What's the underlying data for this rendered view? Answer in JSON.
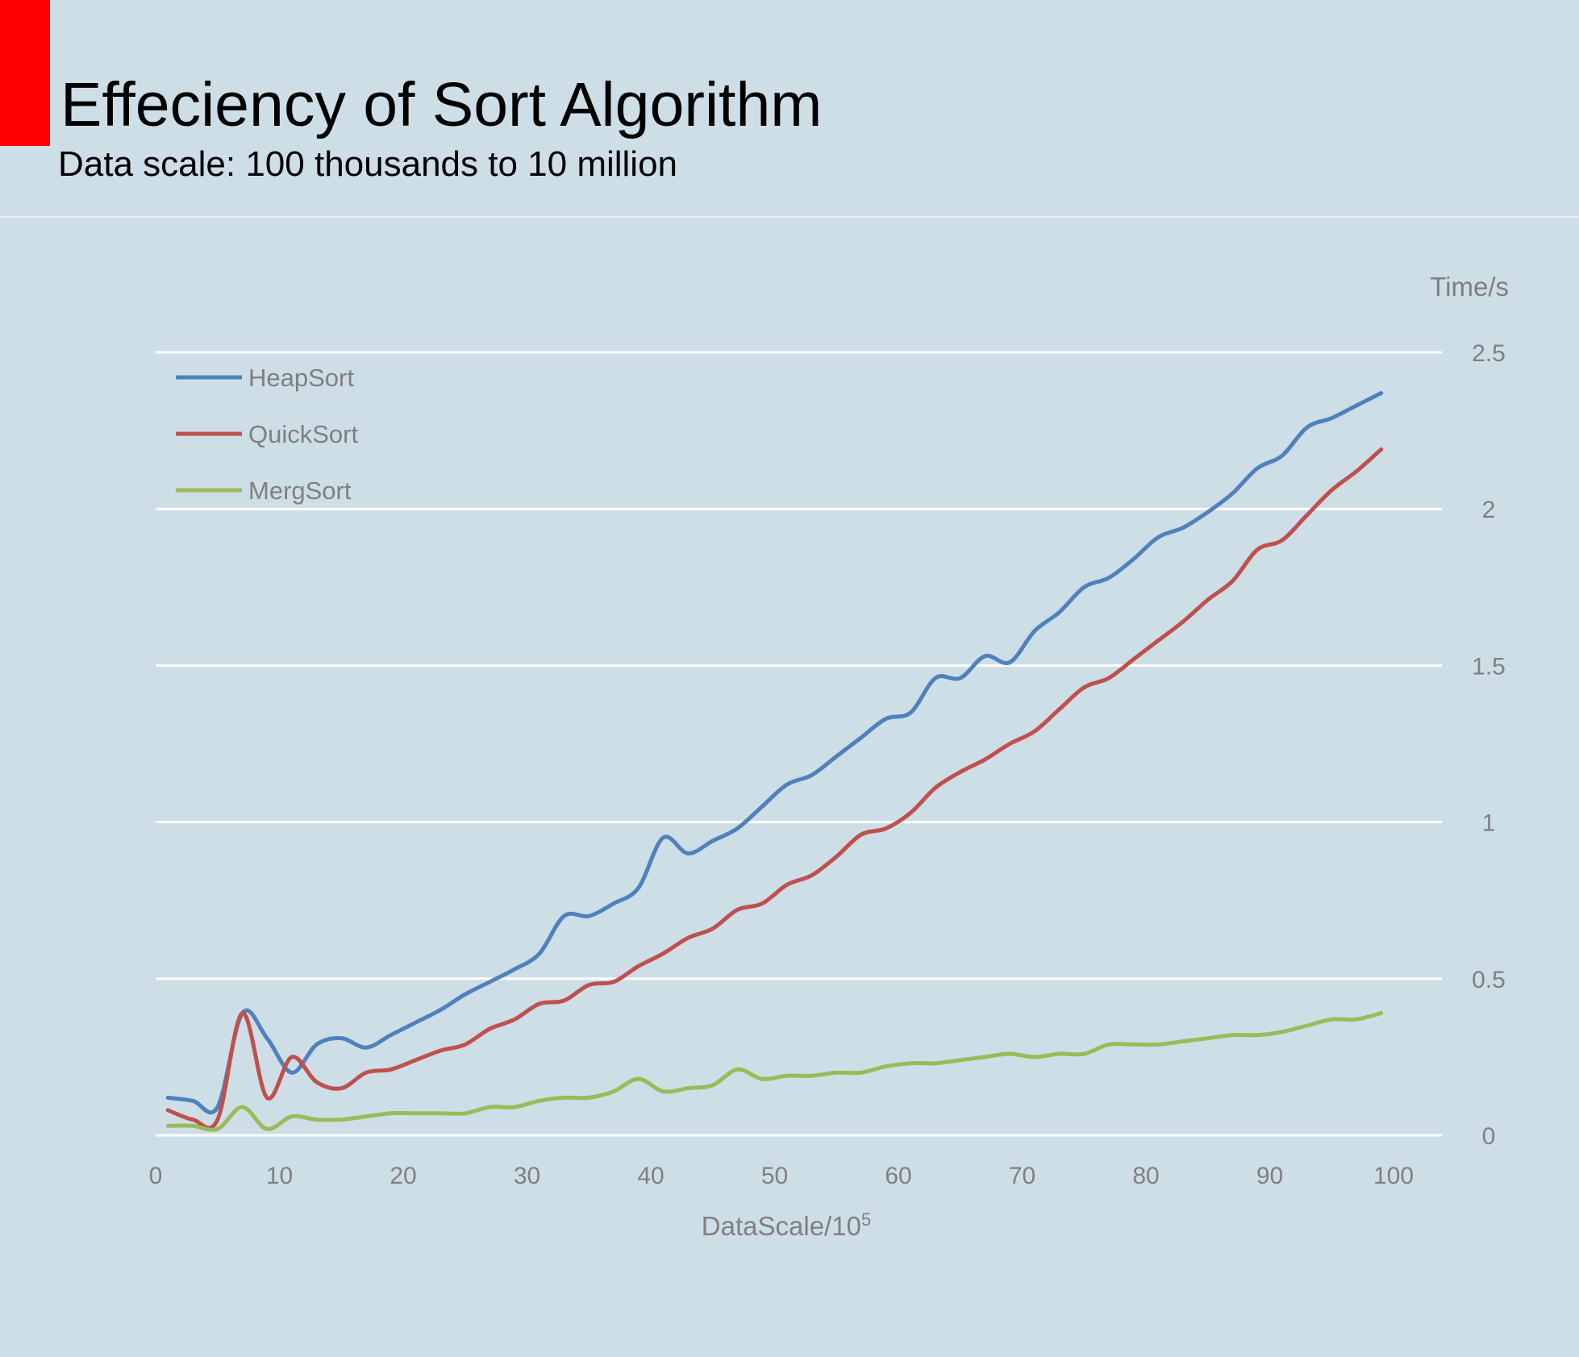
{
  "header": {
    "title": "Effeciency of Sort Algorithm",
    "subtitle": "Data scale: 100 thousands to 10 million",
    "accent_color": "#ff0000"
  },
  "chart_data": {
    "type": "line",
    "title": "Effeciency of Sort Algorithm",
    "subtitle": "Data scale: 100 thousands to 10 million",
    "xlabel": "DataScale/10",
    "xlabel_superscript": "5",
    "ylabel": "Time/s",
    "xlim": [
      0,
      100
    ],
    "ylim": [
      0,
      2.5
    ],
    "x_ticks": [
      "0",
      "10",
      "20",
      "30",
      "40",
      "50",
      "60",
      "70",
      "80",
      "90",
      "100"
    ],
    "y_ticks": [
      "0",
      "0.5",
      "1",
      "1.5",
      "2",
      "2.5"
    ],
    "y_axis_side": "right",
    "grid": true,
    "legend": "top-left",
    "background": "#cddee7",
    "x": [
      1,
      3,
      5,
      7,
      9,
      11,
      13,
      15,
      17,
      19,
      21,
      23,
      25,
      27,
      29,
      31,
      33,
      35,
      37,
      39,
      41,
      43,
      45,
      47,
      49,
      51,
      53,
      55,
      57,
      59,
      61,
      63,
      65,
      67,
      69,
      71,
      73,
      75,
      77,
      79,
      81,
      83,
      85,
      87,
      89,
      91,
      93,
      95,
      97,
      99
    ],
    "series": [
      {
        "name": "HeapSort",
        "color": "#4f81bd",
        "values": [
          0.12,
          0.11,
          0.09,
          0.39,
          0.31,
          0.2,
          0.29,
          0.31,
          0.28,
          0.32,
          0.36,
          0.4,
          0.45,
          0.49,
          0.53,
          0.58,
          0.7,
          0.7,
          0.74,
          0.79,
          0.95,
          0.9,
          0.94,
          0.98,
          1.05,
          1.12,
          1.15,
          1.21,
          1.27,
          1.33,
          1.35,
          1.46,
          1.46,
          1.53,
          1.51,
          1.61,
          1.67,
          1.75,
          1.78,
          1.84,
          1.91,
          1.94,
          1.99,
          2.05,
          2.13,
          2.17,
          2.26,
          2.29,
          2.33,
          2.37
        ]
      },
      {
        "name": "QuickSort",
        "color": "#c0504d",
        "values": [
          0.08,
          0.05,
          0.05,
          0.39,
          0.12,
          0.25,
          0.17,
          0.15,
          0.2,
          0.21,
          0.24,
          0.27,
          0.29,
          0.34,
          0.37,
          0.42,
          0.43,
          0.48,
          0.49,
          0.54,
          0.58,
          0.63,
          0.66,
          0.72,
          0.74,
          0.8,
          0.83,
          0.89,
          0.96,
          0.98,
          1.03,
          1.11,
          1.16,
          1.2,
          1.25,
          1.29,
          1.36,
          1.43,
          1.46,
          1.52,
          1.58,
          1.64,
          1.71,
          1.77,
          1.87,
          1.9,
          1.98,
          2.06,
          2.12,
          2.19
        ]
      },
      {
        "name": "MergSort",
        "color": "#9bbb59",
        "values": [
          0.03,
          0.03,
          0.02,
          0.09,
          0.02,
          0.06,
          0.05,
          0.05,
          0.06,
          0.07,
          0.07,
          0.07,
          0.07,
          0.09,
          0.09,
          0.11,
          0.12,
          0.12,
          0.14,
          0.18,
          0.14,
          0.15,
          0.16,
          0.21,
          0.18,
          0.19,
          0.19,
          0.2,
          0.2,
          0.22,
          0.23,
          0.23,
          0.24,
          0.25,
          0.26,
          0.25,
          0.26,
          0.26,
          0.29,
          0.29,
          0.29,
          0.3,
          0.31,
          0.32,
          0.32,
          0.33,
          0.35,
          0.37,
          0.37,
          0.39
        ]
      }
    ]
  }
}
